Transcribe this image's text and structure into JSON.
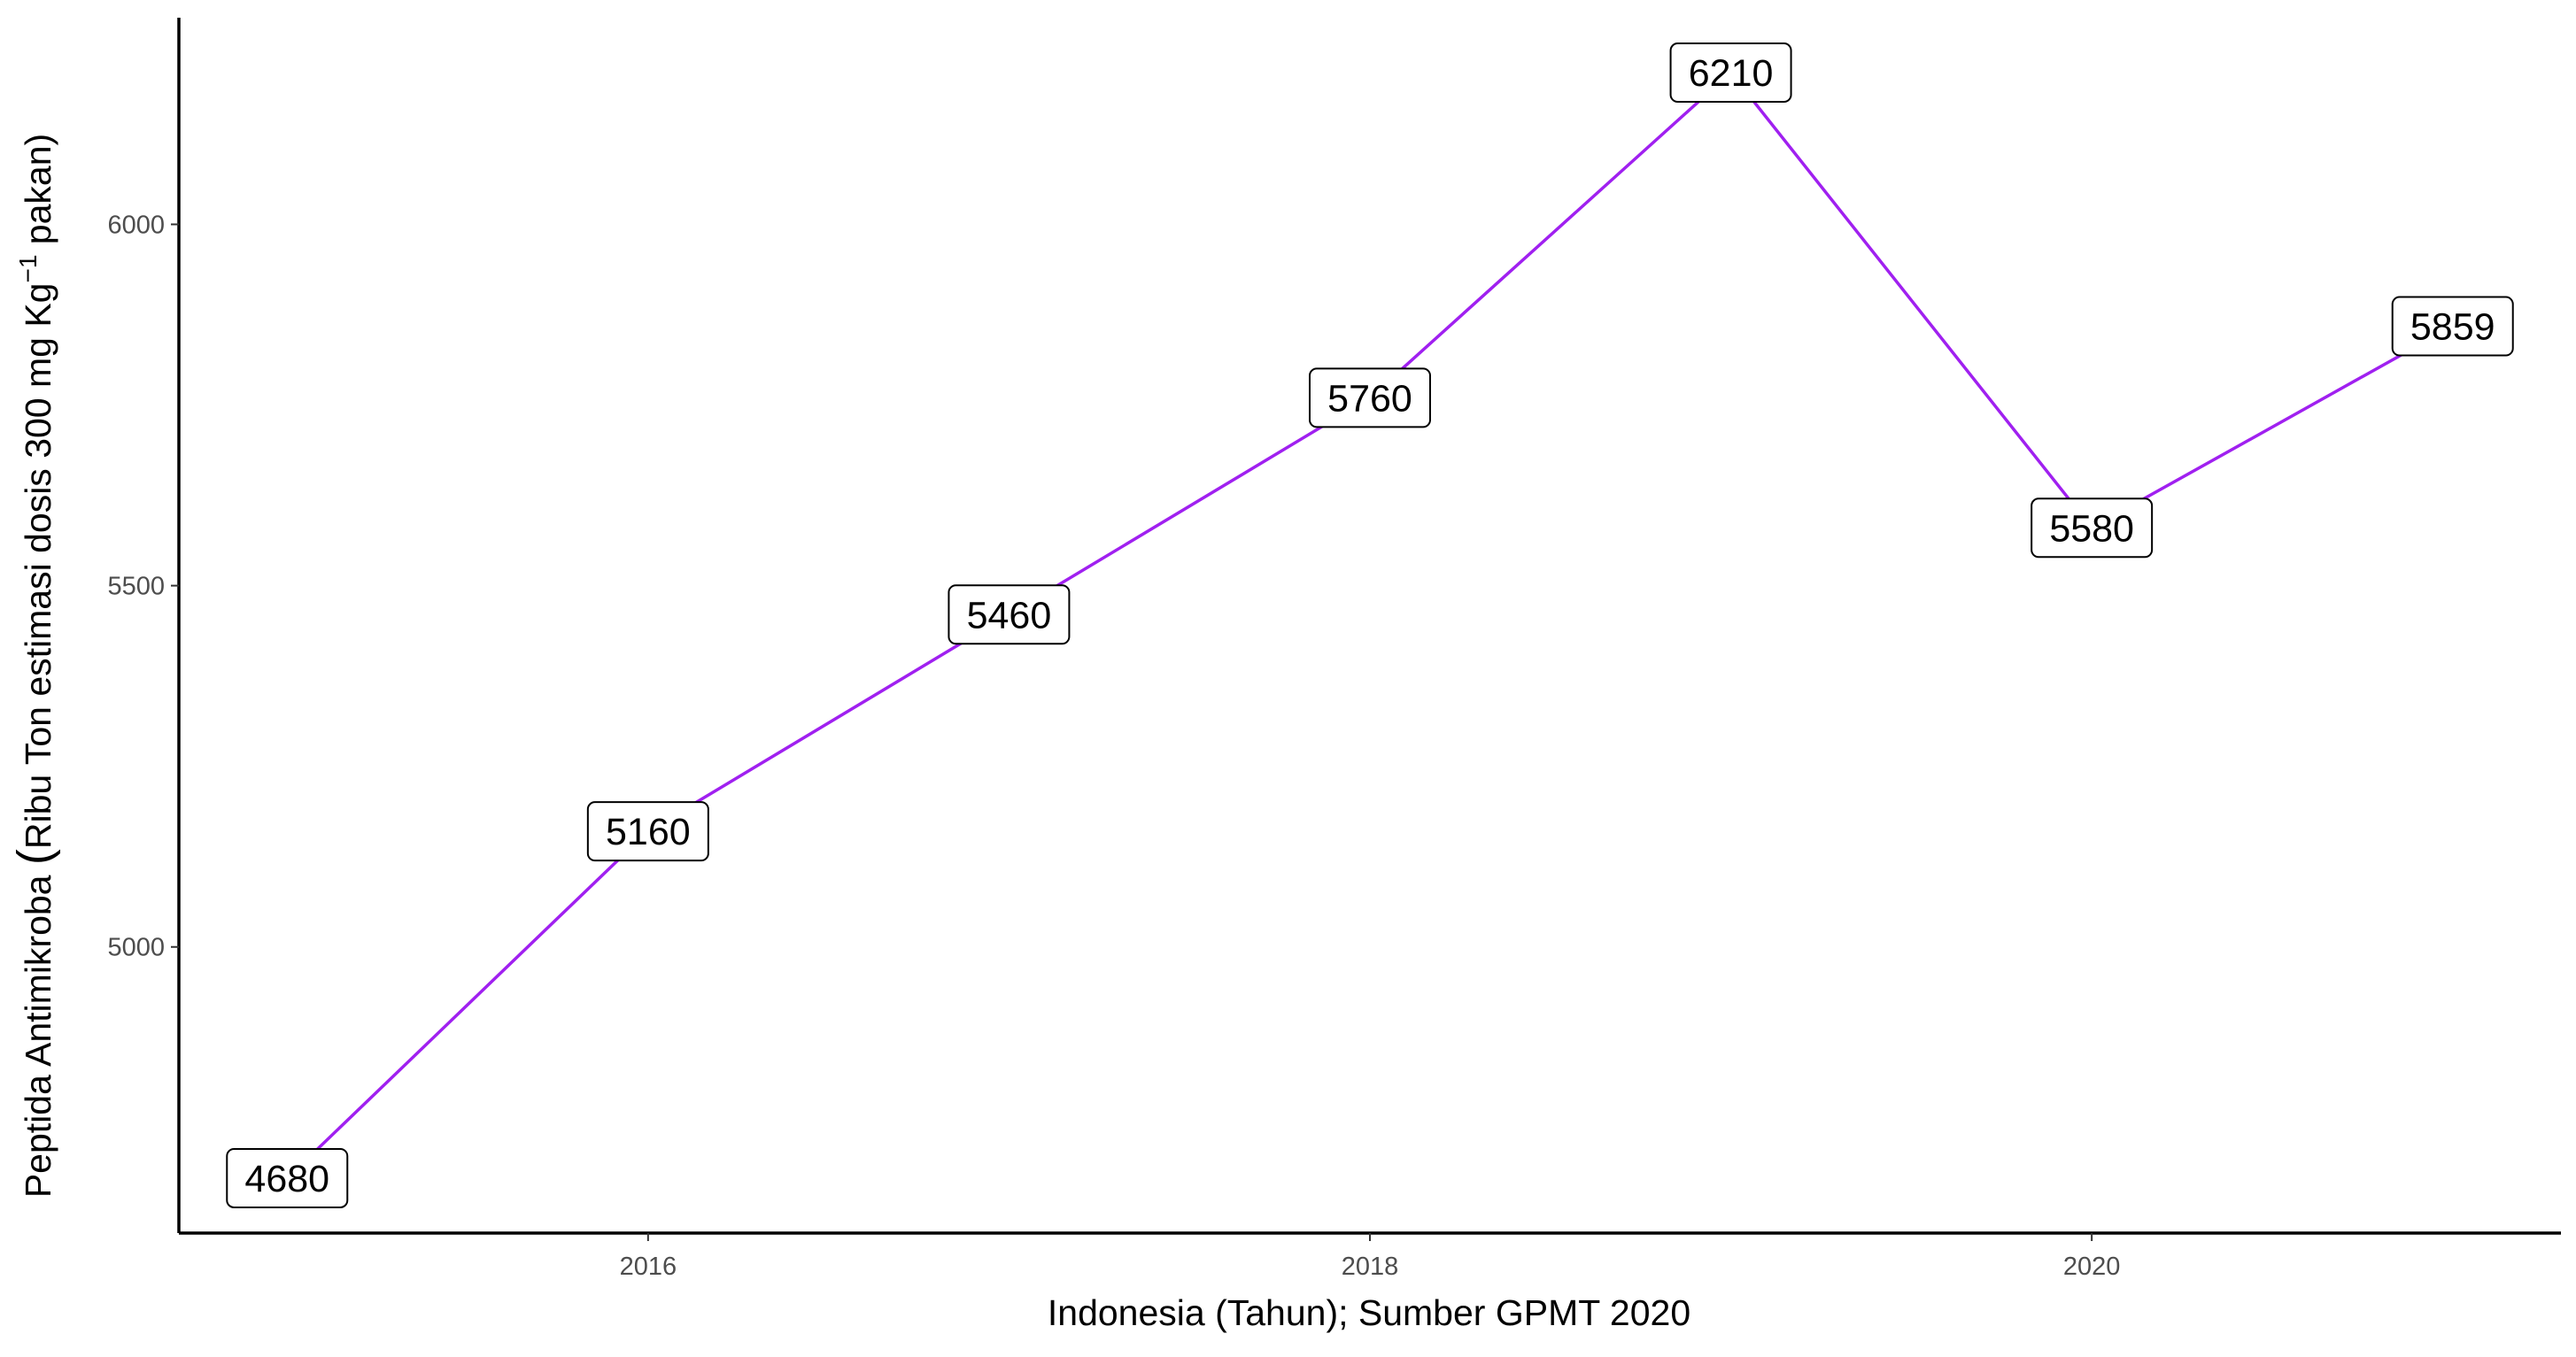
{
  "chart_data": {
    "type": "line",
    "title": "",
    "xlabel": "Indonesia (Tahun); Sumber GPMT 2020",
    "ylabel_parts": {
      "prefix": "Peptida Antimikroba ",
      "open_paren": "(",
      "main": "Ribu Ton estimasi dosis 300 mg Kg",
      "superscript": "−1",
      "suffix": " pakan)"
    },
    "x": [
      2015,
      2016,
      2017,
      2018,
      2019,
      2020,
      2021
    ],
    "series": [
      {
        "values": [
          4680,
          5160,
          5460,
          5760,
          6210,
          5580,
          5859
        ],
        "color": "#A020F0"
      }
    ],
    "data_labels": [
      "4680",
      "5160",
      "5460",
      "5760",
      "6210",
      "5580",
      "5859"
    ],
    "xlim": [
      2014.7,
      2021.3
    ],
    "ylim": [
      4604,
      6286
    ],
    "x_ticks": [
      2016,
      2018,
      2020
    ],
    "x_tick_labels": [
      "2016",
      "2018",
      "2020"
    ],
    "y_ticks": [
      5000,
      5500,
      6000
    ],
    "y_tick_labels": [
      "5000",
      "5500",
      "6000"
    ],
    "grid": false,
    "legend": "none"
  }
}
